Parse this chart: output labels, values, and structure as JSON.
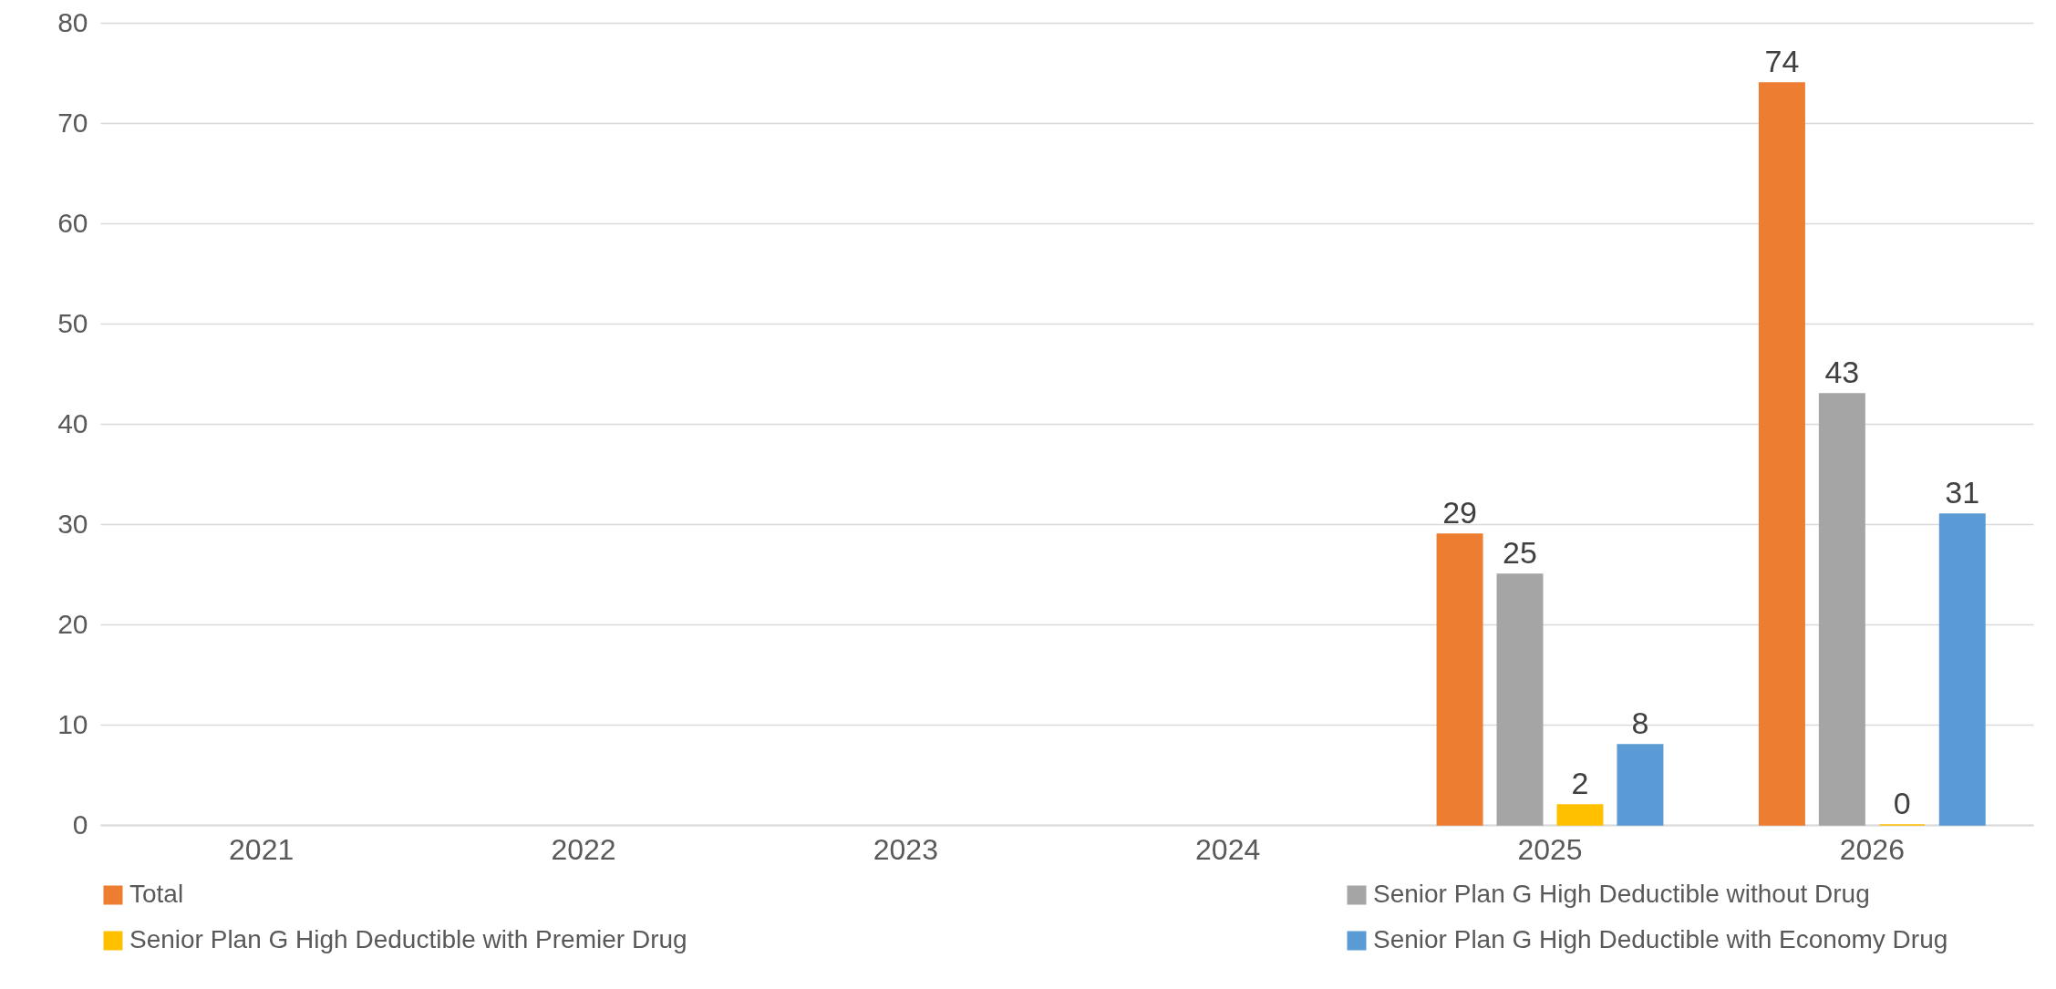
{
  "chart_data": {
    "type": "bar",
    "categories": [
      "2021",
      "2022",
      "2023",
      "2024",
      "2025",
      "2026"
    ],
    "series": [
      {
        "name": "Total",
        "color": "#ed7d31",
        "values": [
          null,
          null,
          null,
          null,
          29,
          74
        ]
      },
      {
        "name": "Senior Plan G High Deductible without Drug",
        "color": "#a5a5a5",
        "values": [
          null,
          null,
          null,
          null,
          25,
          43
        ]
      },
      {
        "name": "Senior Plan G High Deductible with Premier Drug",
        "color": "#ffc000",
        "values": [
          null,
          null,
          null,
          null,
          2,
          0
        ]
      },
      {
        "name": "Senior Plan G High Deductible with Economy Drug",
        "color": "#5b9bd5",
        "values": [
          null,
          null,
          null,
          null,
          8,
          31
        ]
      }
    ],
    "ylim": [
      0,
      80
    ],
    "yticks": [
      0,
      10,
      20,
      30,
      40,
      50,
      60,
      70,
      80
    ],
    "grid": "y",
    "legend": "bottom",
    "data_labels": true
  }
}
